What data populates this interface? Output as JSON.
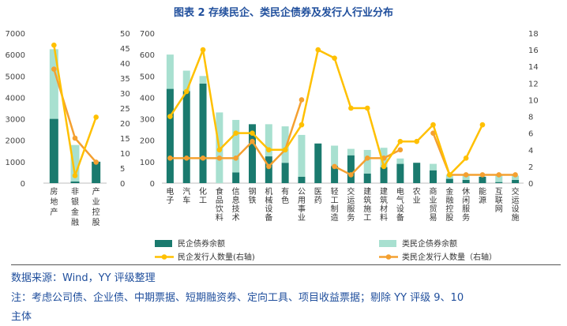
{
  "figure": {
    "title": "图表 2 存续民企、类民企债券及发行人行业分布",
    "source": "数据来源：Wind，YY 评级整理",
    "note_line1": "注：考虑公司债、企业债、中期票据、短期融资券、定向工具、项目收益票据；剔除 YY 评级 9、10",
    "note_line2": "主体"
  },
  "colors": {
    "private_bond": "#1a7a6e",
    "quasi_bond": "#a8e0d0",
    "private_issuer": "#ffc000",
    "quasi_issuer": "#f4a030",
    "title": "#1f4e9c"
  },
  "chart_data": [
    {
      "type": "bar",
      "categories": [
        "房地产",
        "非银金融",
        "产业控股"
      ],
      "left_axis": {
        "ylim": [
          0,
          7000
        ],
        "ticks": [
          0,
          1000,
          2000,
          3000,
          4000,
          5000,
          6000,
          7000
        ]
      },
      "right_axis": {
        "ylim": [
          0,
          50
        ],
        "ticks": [
          0,
          5,
          10,
          15,
          20,
          25,
          30,
          35,
          40,
          45,
          50
        ]
      },
      "series": [
        {
          "name": "民企债券余额",
          "kind": "bar",
          "axis": "left",
          "values": [
            3000,
            80,
            1000
          ]
        },
        {
          "name": "类民企债券余额",
          "kind": "bar",
          "axis": "left",
          "values": [
            3250,
            1700,
            0
          ]
        },
        {
          "name": "民企发行人数量(右轴)",
          "kind": "line",
          "axis": "right",
          "values": [
            46,
            2.5,
            22
          ]
        },
        {
          "name": "类民企发行人数量（右轴）",
          "kind": "line",
          "axis": "right",
          "values": [
            38,
            15,
            7
          ]
        }
      ]
    },
    {
      "type": "bar",
      "categories": [
        "电子",
        "汽车",
        "化工",
        "食品饮料",
        "信息技术",
        "钢铁",
        "机械设备",
        "有色",
        "公用事业",
        "医药",
        "轻工制造",
        "交运服务",
        "建筑施工",
        "建筑材料",
        "电气设备",
        "农业",
        "商业贸易",
        "金融控股",
        "休闲服务",
        "能源",
        "互联网",
        "交运设施"
      ],
      "left_axis": {
        "ylim": [
          0,
          700
        ],
        "ticks": [
          0,
          100,
          200,
          300,
          400,
          500,
          600,
          700
        ]
      },
      "right_axis": {
        "ylim": [
          0,
          18
        ],
        "ticks": [
          0,
          2,
          4,
          6,
          8,
          10,
          12,
          14,
          16,
          18
        ]
      },
      "series": [
        {
          "name": "民企债券余额",
          "kind": "bar",
          "axis": "left",
          "values": [
            440,
            430,
            465,
            0,
            50,
            275,
            125,
            95,
            30,
            185,
            80,
            130,
            45,
            75,
            90,
            95,
            60,
            20,
            15,
            30,
            5,
            15
          ]
        },
        {
          "name": "类民企债券余额",
          "kind": "bar",
          "axis": "left",
          "values": [
            160,
            95,
            35,
            330,
            245,
            0,
            150,
            170,
            195,
            0,
            95,
            30,
            110,
            90,
            25,
            0,
            30,
            20,
            20,
            0,
            30,
            20
          ]
        },
        {
          "name": "民企发行人数量(右轴)",
          "kind": "line",
          "axis": "right",
          "values": [
            8,
            11,
            16,
            4,
            6,
            6,
            4,
            4,
            7,
            16,
            15,
            9,
            9,
            2,
            5,
            5,
            7,
            1,
            3,
            7,
            null,
            null
          ]
        },
        {
          "name": "类民企发行人数量（右轴）",
          "kind": "line",
          "axis": "right",
          "values": [
            3,
            3,
            3,
            3,
            3,
            5,
            2,
            4,
            10,
            null,
            2,
            1,
            3,
            3,
            4,
            null,
            6,
            1,
            1,
            1,
            1,
            1
          ]
        }
      ]
    }
  ]
}
